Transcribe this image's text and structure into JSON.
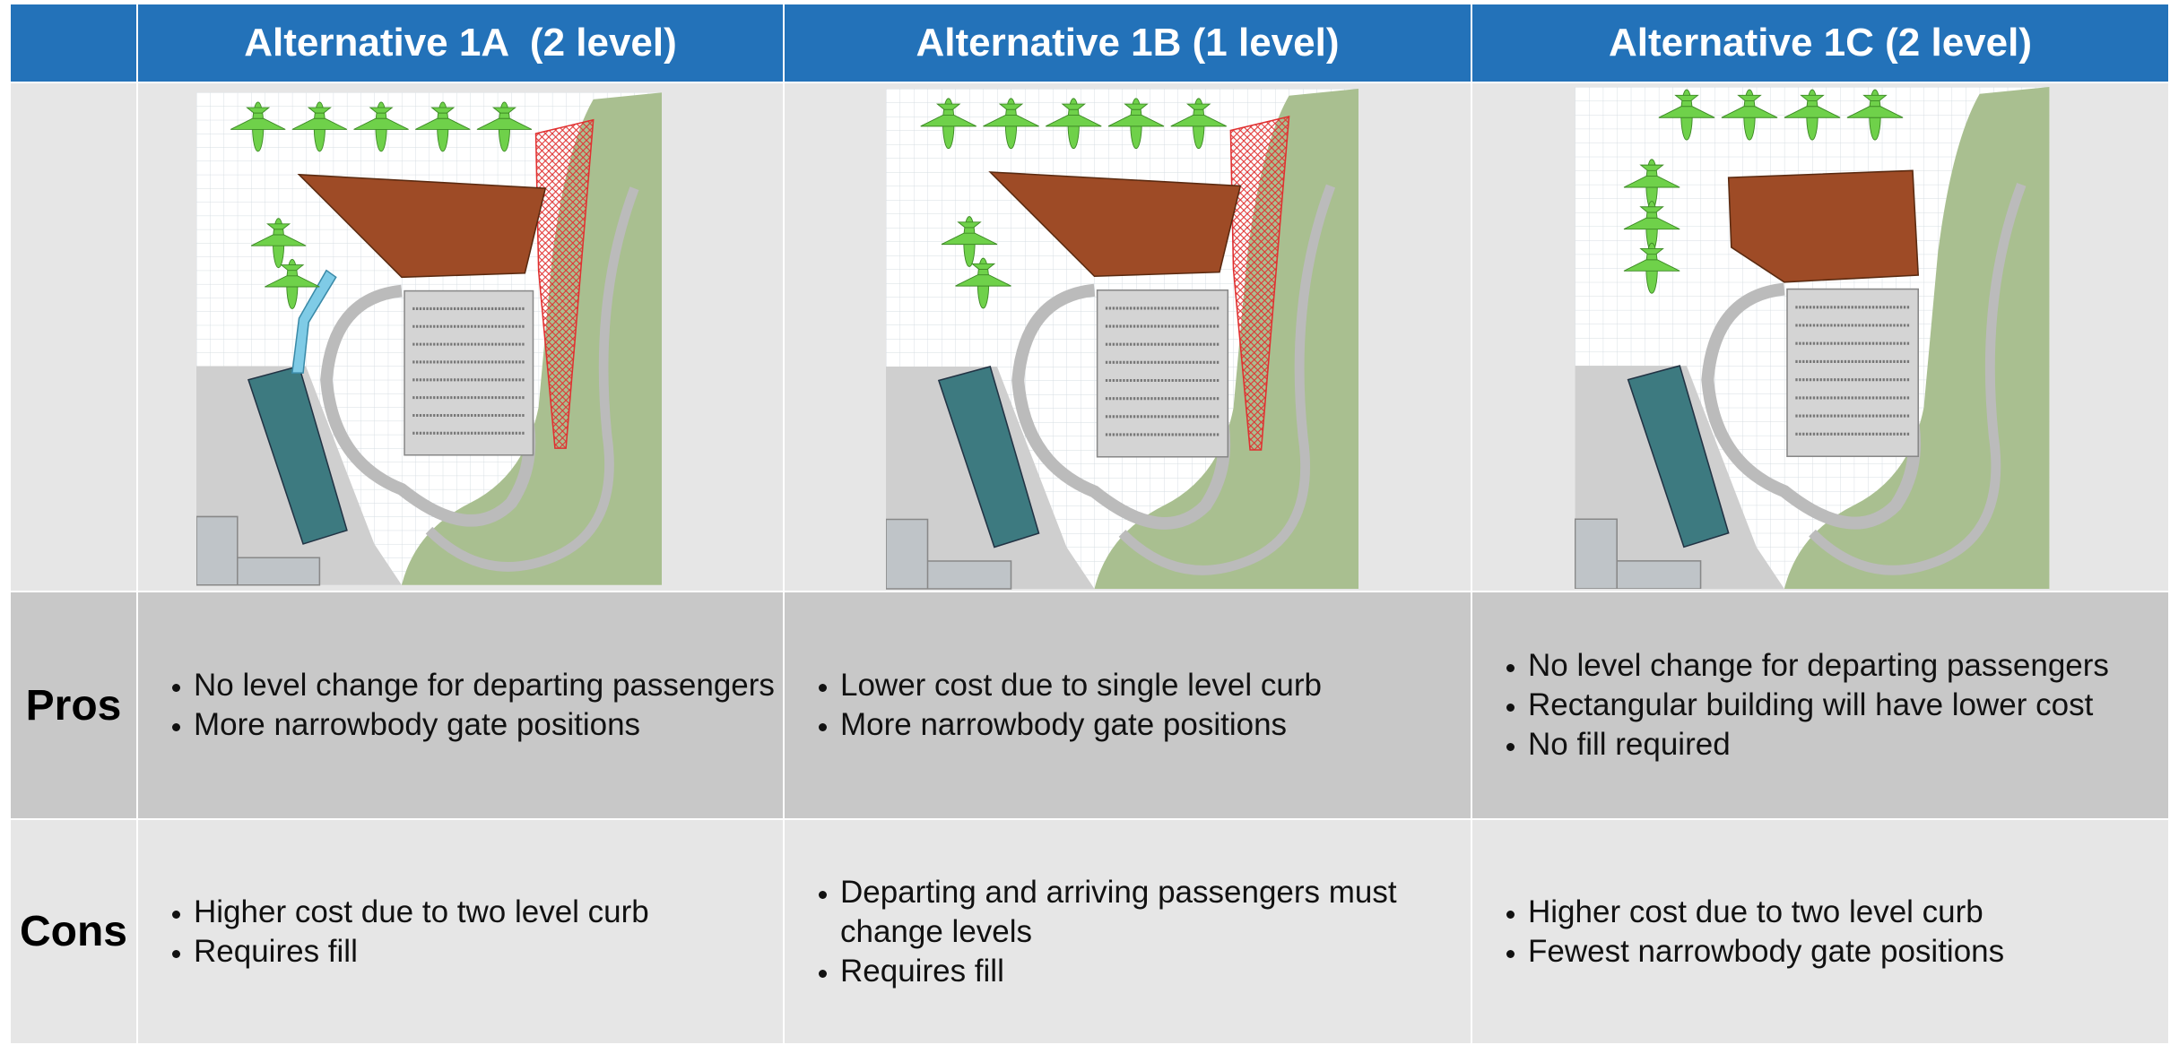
{
  "table": {
    "header": [
      "Alternative 1A  (2 level)",
      "Alternative 1B (1 level)",
      "Alternative 1C (2 level)"
    ],
    "row_labels": [
      "Pros",
      "Cons"
    ],
    "pros": [
      [
        "No level change for departing passengers",
        "More narrowbody gate positions"
      ],
      [
        "Lower cost due to single level curb",
        "More narrowbody gate positions"
      ],
      [
        "No level change for departing passengers",
        "Rectangular building will have lower cost",
        "No fill required"
      ]
    ],
    "cons": [
      [
        "Higher cost due to two level curb",
        "Requires fill"
      ],
      [
        "Departing and arriving passengers must change levels",
        "Requires fill"
      ],
      [
        "Higher cost due to two level curb",
        "Fewest narrowbody gate positions"
      ]
    ]
  }
}
